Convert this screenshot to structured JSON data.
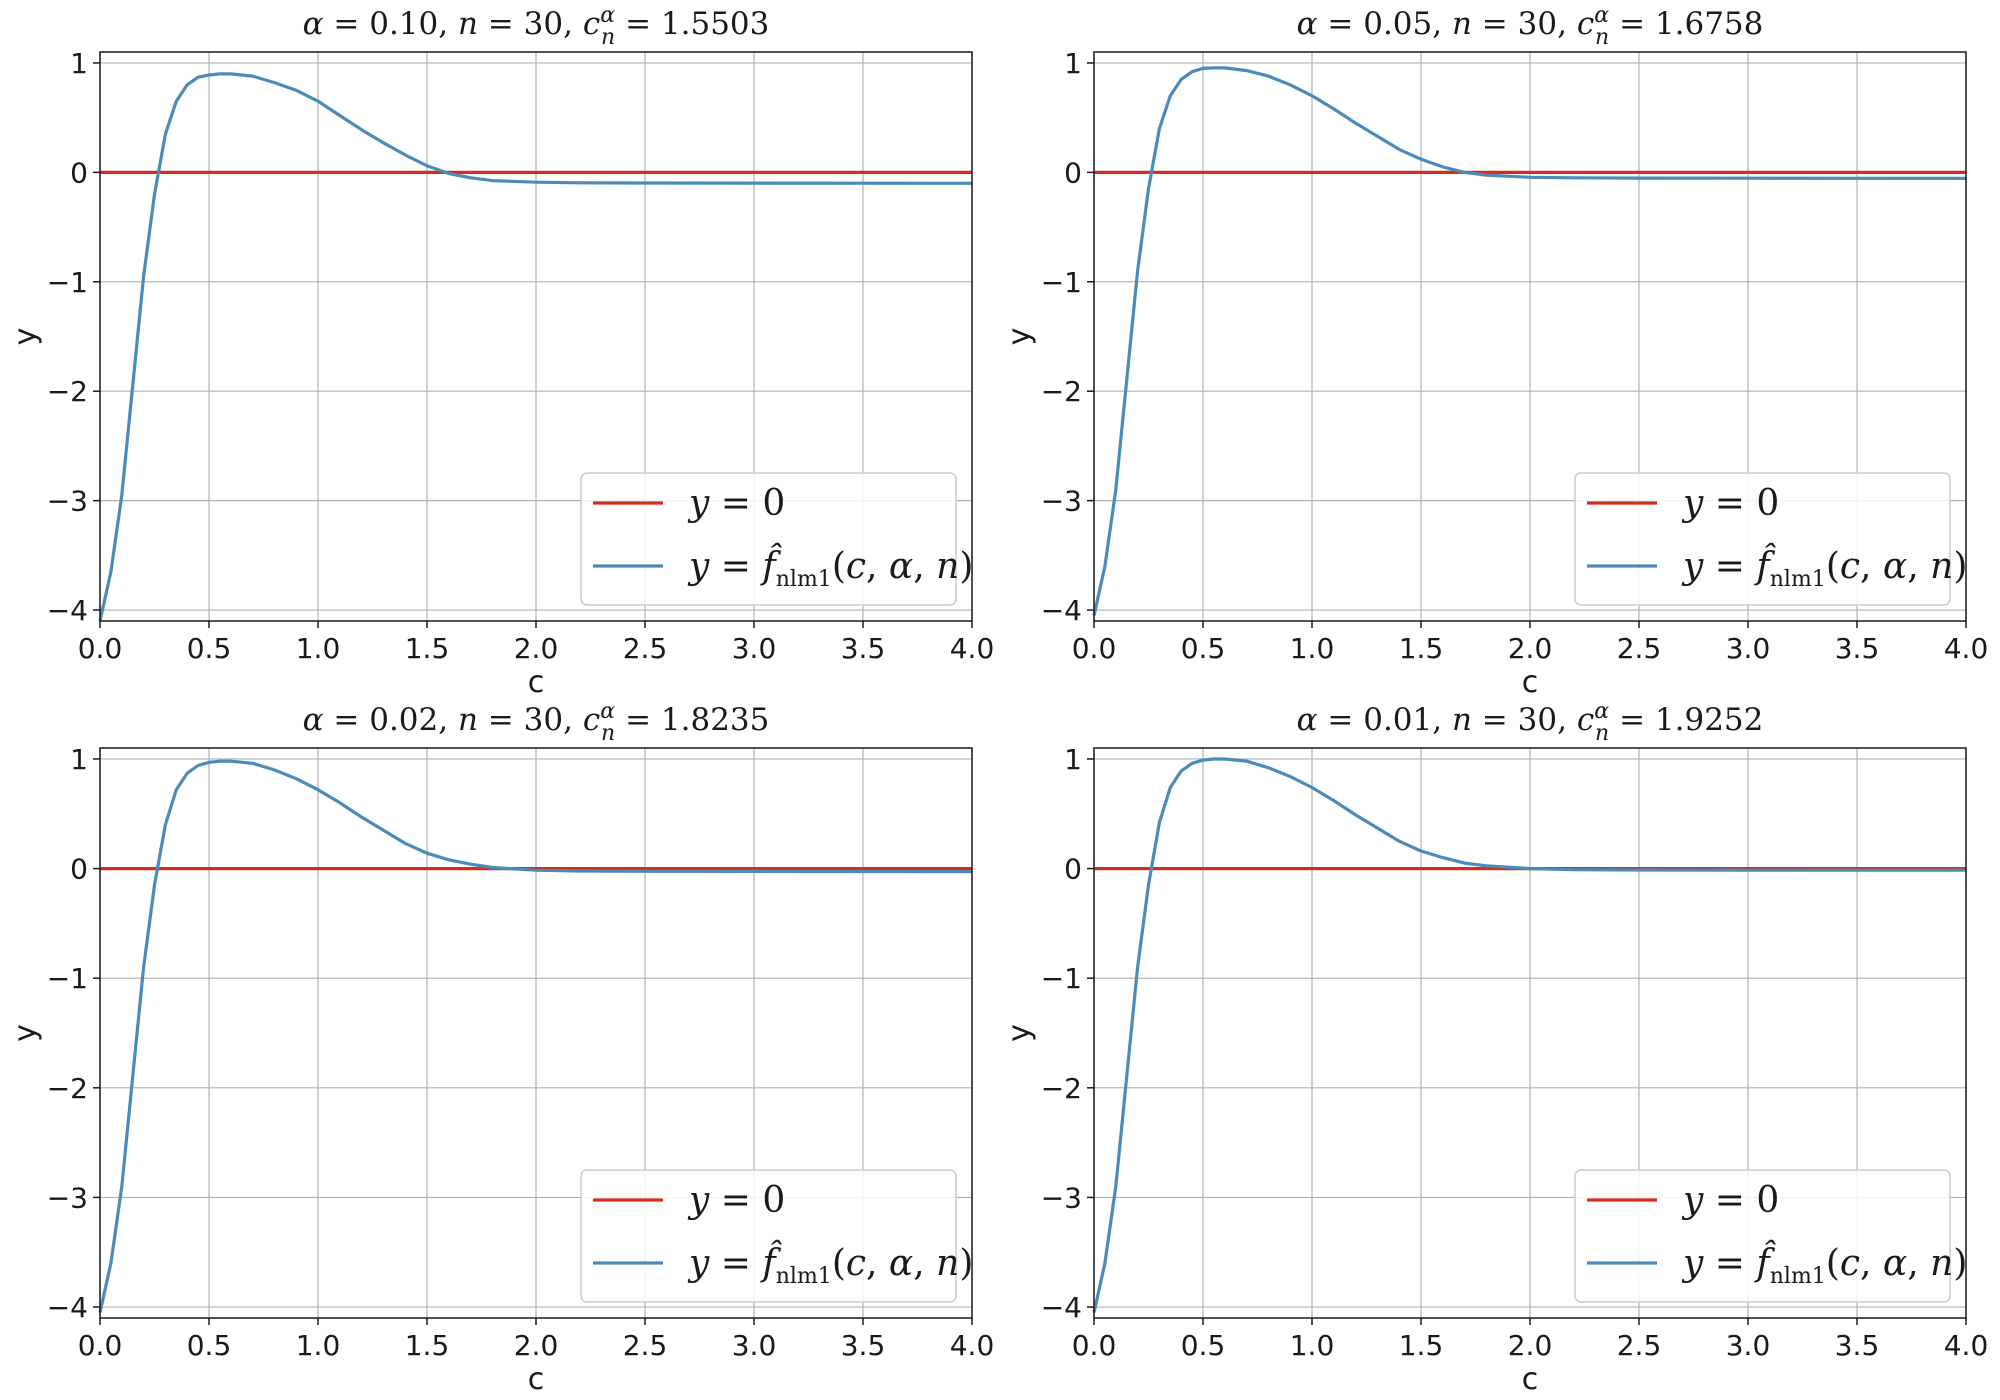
{
  "chart_data": [
    {
      "type": "line",
      "title": {
        "alpha": "0.10",
        "n": "30",
        "c": "1.5503"
      },
      "xlabel": "c",
      "ylabel": "y",
      "xlim": [
        0.0,
        4.0
      ],
      "ylim": [
        -4.1,
        1.1
      ],
      "grid": true,
      "legend_position": "lower-right",
      "x_ticks": [
        "0.0",
        "0.5",
        "1.0",
        "1.5",
        "2.0",
        "2.5",
        "3.0",
        "3.5",
        "4.0"
      ],
      "y_ticks": [
        "1",
        "0",
        "−1",
        "−2",
        "−3",
        "−4"
      ],
      "series": [
        {
          "name": "y = 0",
          "color": "#d62c1e",
          "x": [
            0,
            4
          ],
          "y": [
            0,
            0
          ]
        },
        {
          "name": "y = f̂nlm1(c, α, n)",
          "color": "#4c8ab8",
          "x": [
            0.0,
            0.05,
            0.1,
            0.15,
            0.2,
            0.25,
            0.3,
            0.35,
            0.4,
            0.45,
            0.5,
            0.55,
            0.6,
            0.7,
            0.8,
            0.9,
            1.0,
            1.1,
            1.2,
            1.3,
            1.4,
            1.5,
            1.6,
            1.7,
            1.8,
            2.0,
            2.2,
            2.5,
            3.0,
            3.5,
            4.0
          ],
          "y": [
            -4.1,
            -3.65,
            -2.95,
            -1.95,
            -0.95,
            -0.2,
            0.35,
            0.65,
            0.8,
            0.87,
            0.89,
            0.9,
            0.9,
            0.88,
            0.82,
            0.75,
            0.65,
            0.52,
            0.39,
            0.27,
            0.16,
            0.06,
            -0.01,
            -0.05,
            -0.075,
            -0.09,
            -0.095,
            -0.097,
            -0.098,
            -0.099,
            -0.1
          ]
        }
      ]
    },
    {
      "type": "line",
      "title": {
        "alpha": "0.05",
        "n": "30",
        "c": "1.6758"
      },
      "xlabel": "c",
      "ylabel": "y",
      "xlim": [
        0.0,
        4.0
      ],
      "ylim": [
        -4.1,
        1.1
      ],
      "grid": true,
      "legend_position": "lower-right",
      "x_ticks": [
        "0.0",
        "0.5",
        "1.0",
        "1.5",
        "2.0",
        "2.5",
        "3.0",
        "3.5",
        "4.0"
      ],
      "y_ticks": [
        "1",
        "0",
        "−1",
        "−2",
        "−3",
        "−4"
      ],
      "series": [
        {
          "name": "y = 0",
          "color": "#d62c1e",
          "x": [
            0,
            4
          ],
          "y": [
            0,
            0
          ]
        },
        {
          "name": "y = f̂nlm1(c, α, n)",
          "color": "#4c8ab8",
          "x": [
            0.0,
            0.05,
            0.1,
            0.15,
            0.2,
            0.25,
            0.3,
            0.35,
            0.4,
            0.45,
            0.5,
            0.55,
            0.6,
            0.7,
            0.8,
            0.9,
            1.0,
            1.1,
            1.2,
            1.3,
            1.4,
            1.5,
            1.6,
            1.7,
            1.8,
            2.0,
            2.2,
            2.5,
            3.0,
            3.5,
            4.0
          ],
          "y": [
            -4.05,
            -3.6,
            -2.9,
            -1.9,
            -0.9,
            -0.15,
            0.4,
            0.7,
            0.85,
            0.92,
            0.95,
            0.955,
            0.955,
            0.93,
            0.88,
            0.8,
            0.7,
            0.58,
            0.45,
            0.33,
            0.21,
            0.12,
            0.05,
            0.0,
            -0.025,
            -0.045,
            -0.05,
            -0.052,
            -0.053,
            -0.054,
            -0.055
          ]
        }
      ]
    },
    {
      "type": "line",
      "title": {
        "alpha": "0.02",
        "n": "30",
        "c": "1.8235"
      },
      "xlabel": "c",
      "ylabel": "y",
      "xlim": [
        0.0,
        4.0
      ],
      "ylim": [
        -4.1,
        1.1
      ],
      "grid": true,
      "legend_position": "lower-right",
      "x_ticks": [
        "0.0",
        "0.5",
        "1.0",
        "1.5",
        "2.0",
        "2.5",
        "3.0",
        "3.5",
        "4.0"
      ],
      "y_ticks": [
        "1",
        "0",
        "−1",
        "−2",
        "−3",
        "−4"
      ],
      "series": [
        {
          "name": "y = 0",
          "color": "#d62c1e",
          "x": [
            0,
            4
          ],
          "y": [
            0,
            0
          ]
        },
        {
          "name": "y = f̂nlm1(c, α, n)",
          "color": "#4c8ab8",
          "x": [
            0.0,
            0.05,
            0.1,
            0.15,
            0.2,
            0.25,
            0.3,
            0.35,
            0.4,
            0.45,
            0.5,
            0.55,
            0.6,
            0.7,
            0.8,
            0.9,
            1.0,
            1.1,
            1.2,
            1.3,
            1.4,
            1.5,
            1.6,
            1.7,
            1.8,
            2.0,
            2.2,
            2.5,
            3.0,
            3.5,
            4.0
          ],
          "y": [
            -4.05,
            -3.6,
            -2.9,
            -1.9,
            -0.9,
            -0.15,
            0.4,
            0.72,
            0.87,
            0.94,
            0.97,
            0.98,
            0.98,
            0.96,
            0.9,
            0.82,
            0.72,
            0.6,
            0.47,
            0.35,
            0.23,
            0.14,
            0.08,
            0.04,
            0.01,
            -0.015,
            -0.022,
            -0.025,
            -0.026,
            -0.027,
            -0.028
          ]
        }
      ]
    },
    {
      "type": "line",
      "title": {
        "alpha": "0.01",
        "n": "30",
        "c": "1.9252"
      },
      "xlabel": "c",
      "ylabel": "y",
      "xlim": [
        0.0,
        4.0
      ],
      "ylim": [
        -4.1,
        1.1
      ],
      "grid": true,
      "legend_position": "lower-right",
      "x_ticks": [
        "0.0",
        "0.5",
        "1.0",
        "1.5",
        "2.0",
        "2.5",
        "3.0",
        "3.5",
        "4.0"
      ],
      "y_ticks": [
        "1",
        "0",
        "−1",
        "−2",
        "−3",
        "−4"
      ],
      "series": [
        {
          "name": "y = 0",
          "color": "#d62c1e",
          "x": [
            0,
            4
          ],
          "y": [
            0,
            0
          ]
        },
        {
          "name": "y = f̂nlm1(c, α, n)",
          "color": "#4c8ab8",
          "x": [
            0.0,
            0.05,
            0.1,
            0.15,
            0.2,
            0.25,
            0.3,
            0.35,
            0.4,
            0.45,
            0.5,
            0.55,
            0.6,
            0.7,
            0.8,
            0.9,
            1.0,
            1.1,
            1.2,
            1.3,
            1.4,
            1.5,
            1.6,
            1.7,
            1.8,
            2.0,
            2.2,
            2.5,
            3.0,
            3.5,
            4.0
          ],
          "y": [
            -4.05,
            -3.6,
            -2.9,
            -1.9,
            -0.9,
            -0.15,
            0.42,
            0.74,
            0.89,
            0.96,
            0.99,
            1.0,
            1.0,
            0.98,
            0.92,
            0.84,
            0.74,
            0.62,
            0.49,
            0.37,
            0.25,
            0.16,
            0.1,
            0.05,
            0.025,
            0.0,
            -0.01,
            -0.013,
            -0.014,
            -0.015,
            -0.015
          ]
        }
      ]
    }
  ]
}
